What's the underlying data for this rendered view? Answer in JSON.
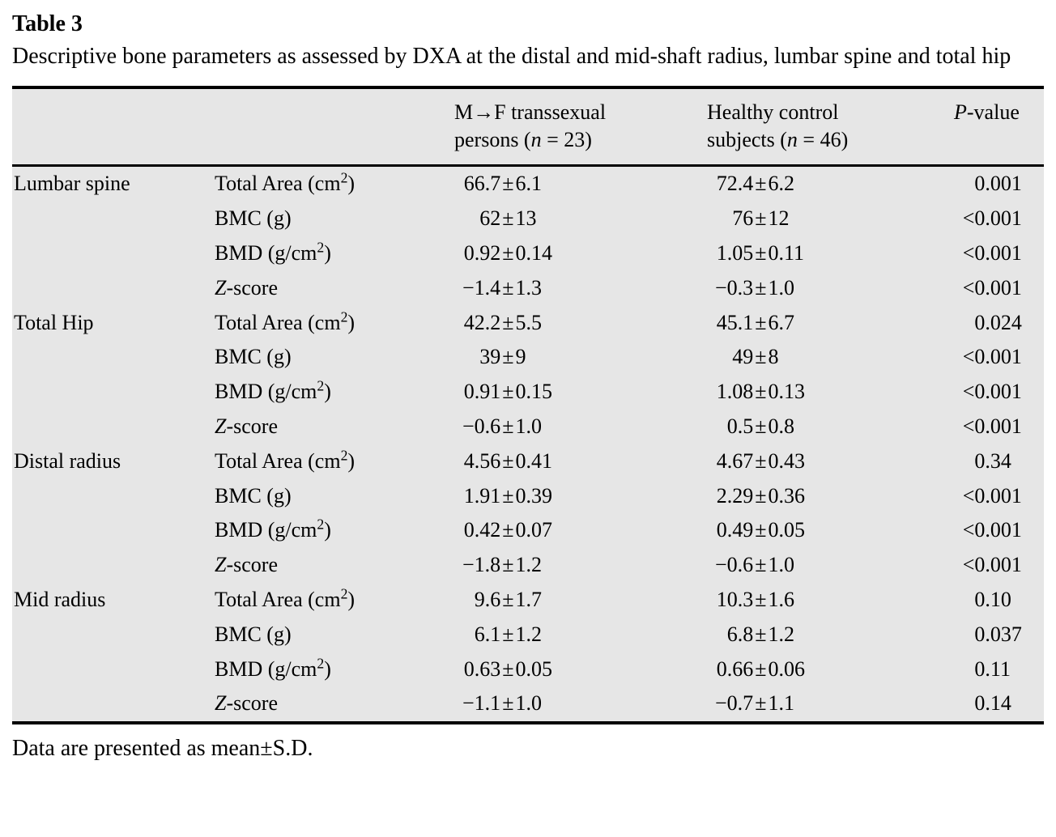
{
  "title": "Table 3",
  "caption": "Descriptive bone parameters as assessed by DXA at the distal and mid-shaft radius, lumbar spine and total hip",
  "footnote": "Data are presented as mean±S.D.",
  "colors": {
    "table_background": "#e6e6e6",
    "rule": "#000000",
    "text": "#000000"
  },
  "table": {
    "header": {
      "region_label": "",
      "parameter_label": "",
      "group1_html": "M→F transsexual<br>persons (<i>n</i> = 23)",
      "group2_html": "Healthy control<br>subjects (<i>n</i> = 46)",
      "pvalue_html": "<i>P</i>-value"
    },
    "groups": [
      {
        "region": "Lumbar spine",
        "rows": [
          {
            "param_html": "Total Area (cm<sup>2</sup>)",
            "g1": "66.7±6.1",
            "g2": "72.4±6.2",
            "p": "0.001"
          },
          {
            "param_html": "BMC (g)",
            "g1": "62±13",
            "g2": "76±12",
            "p": "<0.001"
          },
          {
            "param_html": "BMD (g/cm<sup>2</sup>)",
            "g1": "0.92±0.14",
            "g2": "1.05±0.11",
            "p": "<0.001"
          },
          {
            "param_html": "<i>Z</i>-score",
            "g1": "−1.4±1.3",
            "g2": "−0.3±1.0",
            "p": "<0.001"
          }
        ]
      },
      {
        "region": "Total Hip",
        "rows": [
          {
            "param_html": "Total Area (cm<sup>2</sup>)",
            "g1": "42.2±5.5",
            "g2": "45.1±6.7",
            "p": "0.024"
          },
          {
            "param_html": "BMC (g)",
            "g1": "39±9",
            "g2": "49±8",
            "p": "<0.001"
          },
          {
            "param_html": "BMD (g/cm<sup>2</sup>)",
            "g1": "0.91±0.15",
            "g2": "1.08±0.13",
            "p": "<0.001"
          },
          {
            "param_html": "<i>Z</i>-score",
            "g1": "−0.6±1.0",
            "g2": "0.5±0.8",
            "p": "<0.001"
          }
        ]
      },
      {
        "region": "Distal radius",
        "rows": [
          {
            "param_html": "Total Area (cm<sup>2</sup>)",
            "g1": "4.56±0.41",
            "g2": "4.67±0.43",
            "p": "0.34"
          },
          {
            "param_html": "BMC (g)",
            "g1": "1.91±0.39",
            "g2": "2.29±0.36",
            "p": "<0.001"
          },
          {
            "param_html": "BMD (g/cm<sup>2</sup>)",
            "g1": "0.42±0.07",
            "g2": "0.49±0.05",
            "p": "<0.001"
          },
          {
            "param_html": "<i>Z</i>-score",
            "g1": "−1.8±1.2",
            "g2": "−0.6±1.0",
            "p": "<0.001"
          }
        ]
      },
      {
        "region": "Mid radius",
        "rows": [
          {
            "param_html": "Total Area (cm<sup>2</sup>)",
            "g1": "9.6±1.7",
            "g2": "10.3±1.6",
            "p": "0.10"
          },
          {
            "param_html": "BMC (g)",
            "g1": "6.1±1.2",
            "g2": "6.8±1.2",
            "p": "0.037"
          },
          {
            "param_html": "BMD (g/cm<sup>2</sup>)",
            "g1": "0.63±0.05",
            "g2": "0.66±0.06",
            "p": "0.11"
          },
          {
            "param_html": "<i>Z</i>-score",
            "g1": "−1.1±1.0",
            "g2": "−0.7±1.1",
            "p": "0.14"
          }
        ]
      }
    ]
  }
}
